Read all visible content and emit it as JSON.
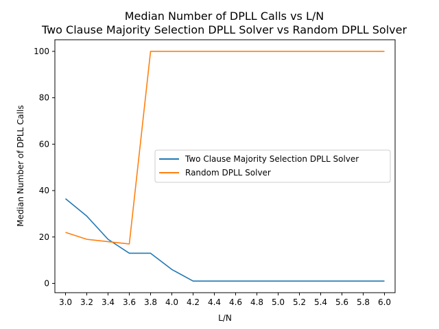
{
  "chart_data": {
    "type": "line",
    "title_line1": "Median Number of DPLL Calls vs L/N",
    "title_line2": "Two Clause Majority Selection DPLL Solver vs Random DPLL Solver",
    "xlabel": "L/N",
    "ylabel": "Median Number of DPLL Calls",
    "x": [
      3.0,
      3.2,
      3.4,
      3.6,
      3.8,
      4.0,
      4.2,
      4.4,
      4.6,
      4.8,
      5.0,
      5.2,
      5.4,
      5.6,
      5.8,
      6.0
    ],
    "x_tick_labels": [
      "3.0",
      "3.2",
      "3.4",
      "3.6",
      "3.8",
      "4.0",
      "4.2",
      "4.4",
      "4.6",
      "4.8",
      "5.0",
      "5.2",
      "5.4",
      "5.6",
      "5.8",
      "6.0"
    ],
    "y_ticks": [
      0,
      20,
      40,
      60,
      80,
      100
    ],
    "y_tick_labels": [
      "0",
      "20",
      "40",
      "60",
      "80",
      "100"
    ],
    "xlim": [
      2.9,
      6.1
    ],
    "ylim": [
      -4,
      105
    ],
    "grid": false,
    "legend_position": "center-right",
    "series": [
      {
        "name": "Two Clause Majority Selection DPLL Solver",
        "color": "#1f77b4",
        "values": [
          36.5,
          29,
          19,
          13,
          13,
          6,
          1,
          1,
          1,
          1,
          1,
          1,
          1,
          1,
          1,
          1
        ]
      },
      {
        "name": "Random DPLL Solver",
        "color": "#ff7f0e",
        "values": [
          22,
          19,
          18,
          17,
          100,
          100,
          100,
          100,
          100,
          100,
          100,
          100,
          100,
          100,
          100,
          100
        ]
      }
    ]
  }
}
